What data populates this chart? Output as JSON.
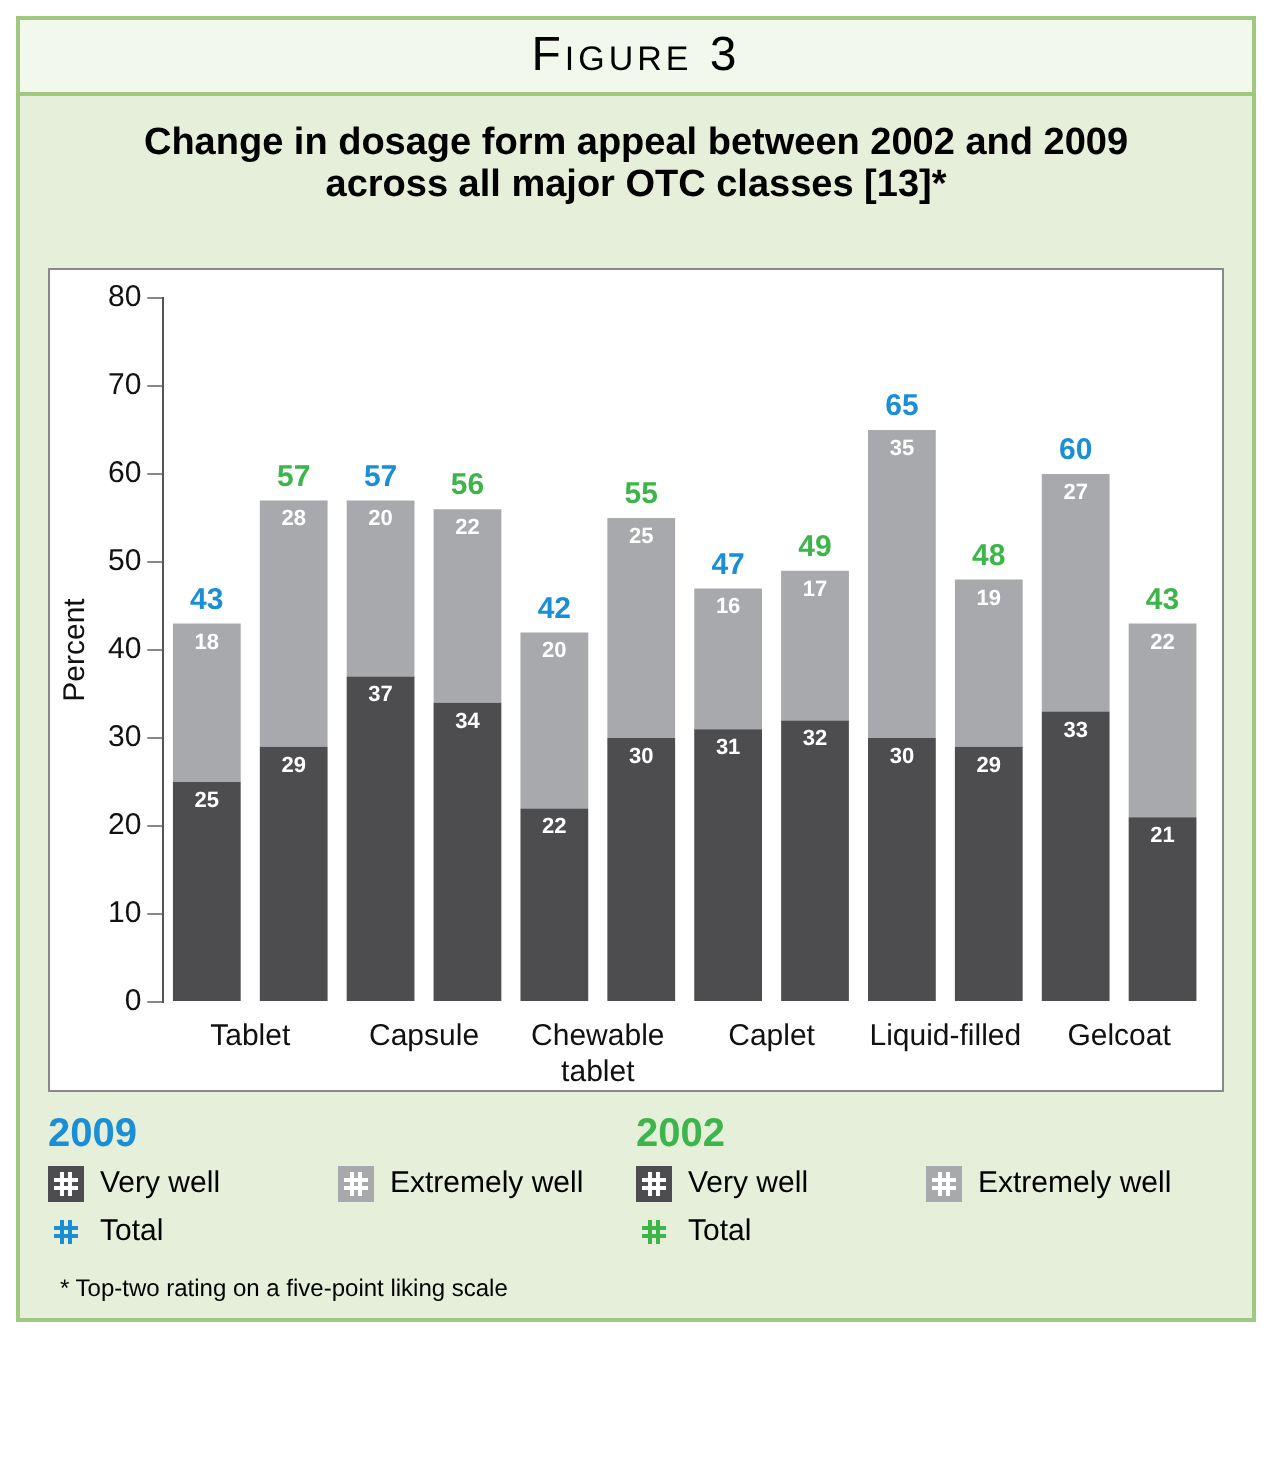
{
  "chart_data": {
    "type": "bar",
    "title": "Change in dosage form appeal between 2002 and 2009 across all major OTC classes [13]*",
    "subtitle": "Figure 3",
    "ylabel": "Percent",
    "legend_title": "2009",
    "categories": [
      "Tablet",
      null,
      "Capsule",
      null,
      "Chewable tablet",
      null,
      "Caplet",
      null,
      "Liquid-filled",
      null,
      "Gelcoat",
      null
    ],
    "stacked": true,
    "series": [
      {
        "name": "Very well",
        "color": "#4d4d4f",
        "values": [
          25,
          null,
          37,
          null,
          22,
          null,
          31,
          null,
          30,
          null,
          33,
          null
        ]
      },
      {
        "name": "Extremely well",
        "color": "#a7a9ac",
        "values": [
          18,
          null,
          20,
          null,
          20,
          null,
          16,
          null,
          35,
          null,
          27,
          null
        ]
      },
      {
        "name": "Very well",
        "color": "#4d4d4f",
        "values": [
          null,
          29,
          null,
          34,
          null,
          30,
          null,
          32,
          null,
          29,
          null,
          21
        ]
      },
      {
        "name": "Extremely well",
        "color": "#a7a9ac",
        "values": [
          null,
          28,
          null,
          22,
          null,
          25,
          null,
          17,
          null,
          19,
          null,
          22
        ]
      }
    ],
    "totals": [
      "43",
      "57",
      "57",
      "56",
      "42",
      "55",
      "47",
      "49",
      "65",
      "48",
      "60",
      "43"
    ],
    "data_labels": true,
    "ylim": [
      0,
      80
    ],
    "yticks": [
      0,
      10,
      20,
      30,
      40,
      50,
      60,
      70,
      80
    ],
    "grid": false,
    "legend": "bottom",
    "annotations": [
      "2002",
      "Total",
      "* Top-two rating on a five-point liking scale"
    ]
  }
}
